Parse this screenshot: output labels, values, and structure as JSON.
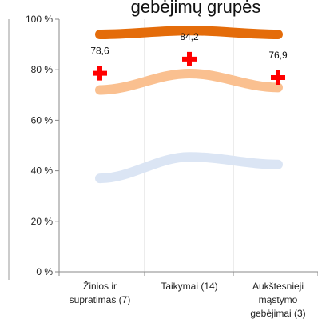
{
  "chart_data": {
    "type": "line",
    "title": "gebėjimų grupės",
    "categories": [
      [
        "Žinios ir",
        "supratimas (7)"
      ],
      [
        "Taikymai (14)"
      ],
      [
        "Aukštesnieji",
        "mąstymo",
        "gebėjimai (3)"
      ]
    ],
    "ylim": [
      0,
      100
    ],
    "yticks": [
      0,
      20,
      40,
      60,
      80,
      100
    ],
    "ytick_labels": [
      "0 %",
      "20 %",
      "40 %",
      "60 %",
      "80 %",
      "100 %"
    ],
    "grid": "vertical",
    "series": [
      {
        "values": [
          94,
          95.5,
          94
        ],
        "color": "#e46c0a",
        "style": "line"
      },
      {
        "values": [
          72,
          78.5,
          73
        ],
        "color": "#fac090",
        "style": "line"
      },
      {
        "values": [
          37,
          45.5,
          42.5
        ],
        "color": "#dbe5f4",
        "style": "line"
      },
      {
        "values": [
          78.6,
          84.2,
          76.9
        ],
        "color": "#ff0000",
        "style": "cross-marker",
        "labels": [
          "78,6",
          "84,2",
          "76,9"
        ]
      }
    ]
  }
}
